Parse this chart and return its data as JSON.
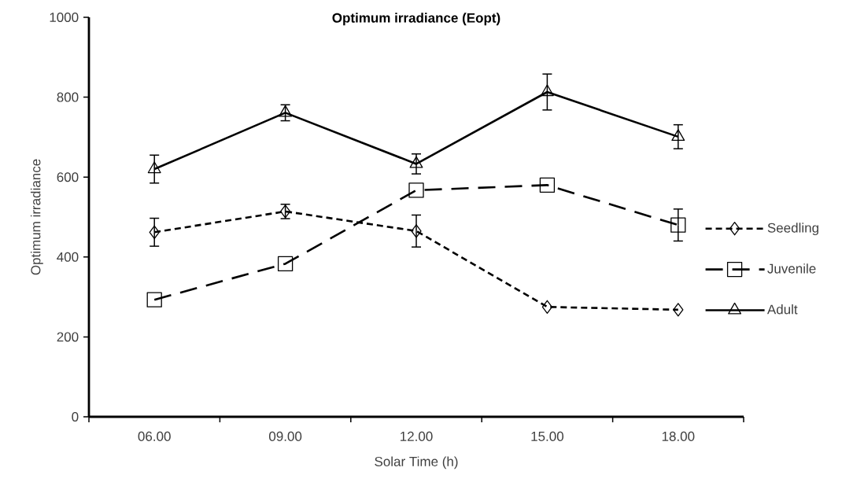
{
  "chart_data": {
    "type": "line",
    "title": "Optimum irradiance (Eopt)",
    "xlabel": "Solar Time (h)",
    "ylabel": "Optimum irradiance",
    "categories": [
      "06.00",
      "09.00",
      "12.00",
      "15.00",
      "18.00"
    ],
    "ylim": [
      0,
      1000
    ],
    "yticks": [
      0,
      200,
      400,
      600,
      800,
      1000
    ],
    "grid": false,
    "legend": "right",
    "series": [
      {
        "name": "Seedling",
        "color": "#000000",
        "marker": "diamond",
        "line_style": "dotted",
        "values": [
          462,
          514,
          465,
          275,
          268
        ],
        "errors": [
          35,
          18,
          40,
          null,
          null
        ]
      },
      {
        "name": "Juvenile",
        "color": "#000000",
        "marker": "square",
        "line_style": "dashed",
        "values": [
          293,
          383,
          567,
          580,
          480
        ],
        "errors": [
          null,
          null,
          null,
          null,
          40
        ]
      },
      {
        "name": "Adult",
        "color": "#000000",
        "marker": "triangle",
        "line_style": "solid",
        "values": [
          620,
          761,
          633,
          813,
          701
        ],
        "errors": [
          35,
          20,
          25,
          45,
          30
        ]
      }
    ]
  }
}
